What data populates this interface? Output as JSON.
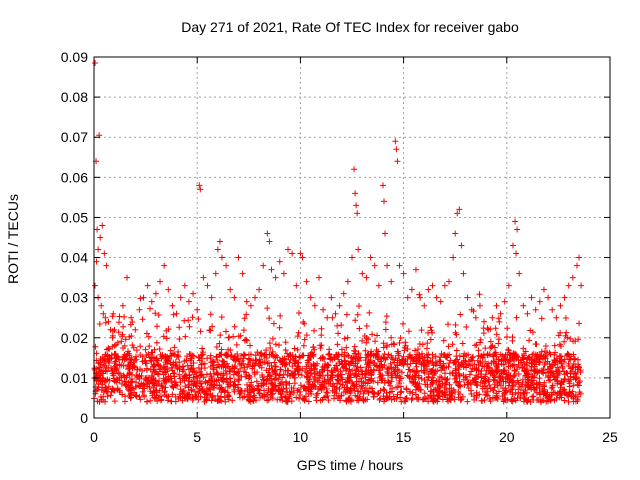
{
  "chart_data": {
    "type": "scatter",
    "title": "Day 271 of 2021, Rate Of TEC Index for receiver gabo",
    "xlabel": "GPS time / hours",
    "ylabel": "ROTI / TECUs",
    "xlim": [
      0,
      25
    ],
    "ylim": [
      0,
      0.09
    ],
    "x_ticks": [
      "0",
      "5",
      "10",
      "15",
      "20",
      "25"
    ],
    "y_ticks": [
      "0",
      "0.01",
      "0.02",
      "0.03",
      "0.04",
      "0.05",
      "0.06",
      "0.07",
      "0.08",
      "0.09"
    ],
    "grid": true,
    "marker": "plus",
    "color": "#ff0000",
    "points": [
      [
        0.05,
        0.0885
      ],
      [
        0.1,
        0.064
      ],
      [
        0.25,
        0.0705
      ],
      [
        0.15,
        0.047
      ],
      [
        0.2,
        0.042
      ],
      [
        0.12,
        0.039
      ],
      [
        0.3,
        0.045
      ],
      [
        0.4,
        0.048
      ],
      [
        0.5,
        0.041
      ],
      [
        0.6,
        0.038
      ],
      [
        0.05,
        0.033
      ],
      [
        0.2,
        0.03
      ],
      [
        0.35,
        0.028
      ],
      [
        0.45,
        0.026
      ],
      [
        0.55,
        0.025
      ],
      [
        0.7,
        0.024
      ],
      [
        0.8,
        0.022
      ],
      [
        0.9,
        0.02
      ],
      [
        1.0,
        0.018
      ],
      [
        1.2,
        0.015
      ],
      [
        1.4,
        0.028
      ],
      [
        1.6,
        0.035
      ],
      [
        1.8,
        0.025
      ],
      [
        2.0,
        0.022
      ],
      [
        2.2,
        0.027
      ],
      [
        2.4,
        0.03
      ],
      [
        2.6,
        0.033
      ],
      [
        2.8,
        0.029
      ],
      [
        3.0,
        0.031
      ],
      [
        3.2,
        0.034
      ],
      [
        3.4,
        0.038
      ],
      [
        3.6,
        0.032
      ],
      [
        3.8,
        0.028
      ],
      [
        4.0,
        0.026
      ],
      [
        4.2,
        0.03
      ],
      [
        4.4,
        0.033
      ],
      [
        4.6,
        0.029
      ],
      [
        4.8,
        0.031
      ],
      [
        5.0,
        0.027
      ],
      [
        5.1,
        0.058
      ],
      [
        5.15,
        0.057
      ],
      [
        5.3,
        0.035
      ],
      [
        5.5,
        0.033
      ],
      [
        5.7,
        0.03
      ],
      [
        5.9,
        0.036
      ],
      [
        6.0,
        0.042
      ],
      [
        6.1,
        0.044
      ],
      [
        6.2,
        0.04
      ],
      [
        6.4,
        0.038
      ],
      [
        6.6,
        0.032
      ],
      [
        6.8,
        0.03
      ],
      [
        7.0,
        0.04
      ],
      [
        7.2,
        0.036
      ],
      [
        7.4,
        0.029
      ],
      [
        7.6,
        0.028
      ],
      [
        7.8,
        0.03
      ],
      [
        8.0,
        0.032
      ],
      [
        8.2,
        0.038
      ],
      [
        8.4,
        0.046
      ],
      [
        8.5,
        0.044
      ],
      [
        8.6,
        0.037
      ],
      [
        8.8,
        0.035
      ],
      [
        9.0,
        0.039
      ],
      [
        9.2,
        0.036
      ],
      [
        9.4,
        0.042
      ],
      [
        9.6,
        0.041
      ],
      [
        9.8,
        0.033
      ],
      [
        10.0,
        0.041
      ],
      [
        10.1,
        0.04
      ],
      [
        10.3,
        0.034
      ],
      [
        10.5,
        0.03
      ],
      [
        10.7,
        0.028
      ],
      [
        10.9,
        0.035
      ],
      [
        11.1,
        0.027
      ],
      [
        11.3,
        0.025
      ],
      [
        11.5,
        0.03
      ],
      [
        11.7,
        0.026
      ],
      [
        11.9,
        0.028
      ],
      [
        12.1,
        0.031
      ],
      [
        12.3,
        0.034
      ],
      [
        12.5,
        0.04
      ],
      [
        12.6,
        0.062
      ],
      [
        12.65,
        0.056
      ],
      [
        12.7,
        0.053
      ],
      [
        12.75,
        0.051
      ],
      [
        12.8,
        0.042
      ],
      [
        13.0,
        0.036
      ],
      [
        13.2,
        0.035
      ],
      [
        13.4,
        0.04
      ],
      [
        13.6,
        0.038
      ],
      [
        13.8,
        0.033
      ],
      [
        14.0,
        0.058
      ],
      [
        14.05,
        0.054
      ],
      [
        14.1,
        0.046
      ],
      [
        14.2,
        0.038
      ],
      [
        14.4,
        0.034
      ],
      [
        14.6,
        0.069
      ],
      [
        14.65,
        0.067
      ],
      [
        14.7,
        0.064
      ],
      [
        14.8,
        0.038
      ],
      [
        15.0,
        0.036
      ],
      [
        15.2,
        0.03
      ],
      [
        15.4,
        0.032
      ],
      [
        15.6,
        0.037
      ],
      [
        15.8,
        0.03
      ],
      [
        16.0,
        0.028
      ],
      [
        16.2,
        0.032
      ],
      [
        16.4,
        0.033
      ],
      [
        16.6,
        0.03
      ],
      [
        16.8,
        0.029
      ],
      [
        17.0,
        0.033
      ],
      [
        17.2,
        0.034
      ],
      [
        17.4,
        0.04
      ],
      [
        17.5,
        0.046
      ],
      [
        17.6,
        0.051
      ],
      [
        17.7,
        0.052
      ],
      [
        17.8,
        0.043
      ],
      [
        17.9,
        0.036
      ],
      [
        18.1,
        0.03
      ],
      [
        18.3,
        0.027
      ],
      [
        18.5,
        0.025
      ],
      [
        18.7,
        0.028
      ],
      [
        18.9,
        0.024
      ],
      [
        19.1,
        0.022
      ],
      [
        19.3,
        0.025
      ],
      [
        19.5,
        0.028
      ],
      [
        19.7,
        0.026
      ],
      [
        19.9,
        0.029
      ],
      [
        20.1,
        0.033
      ],
      [
        20.3,
        0.043
      ],
      [
        20.4,
        0.049
      ],
      [
        20.5,
        0.047
      ],
      [
        20.45,
        0.041
      ],
      [
        20.6,
        0.036
      ],
      [
        20.8,
        0.028
      ],
      [
        21.0,
        0.026
      ],
      [
        21.2,
        0.03
      ],
      [
        21.4,
        0.027
      ],
      [
        21.6,
        0.029
      ],
      [
        21.8,
        0.032
      ],
      [
        22.0,
        0.03
      ],
      [
        22.2,
        0.027
      ],
      [
        22.4,
        0.025
      ],
      [
        22.6,
        0.028
      ],
      [
        22.8,
        0.03
      ],
      [
        23.0,
        0.033
      ],
      [
        23.2,
        0.035
      ],
      [
        23.4,
        0.038
      ],
      [
        23.5,
        0.04
      ],
      [
        23.6,
        0.033
      ]
    ]
  }
}
